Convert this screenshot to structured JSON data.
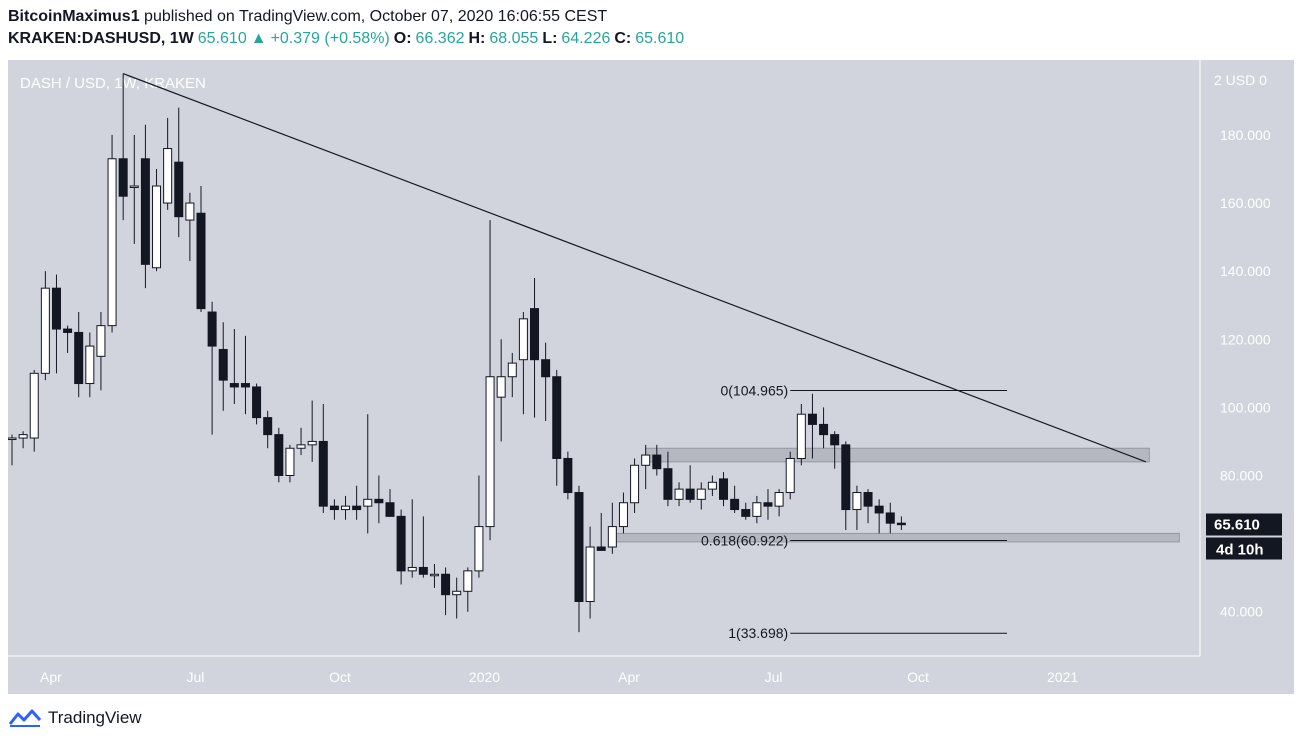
{
  "header": {
    "author": "BitcoinMaximus1",
    "published": "published on TradingView.com, October 07, 2020 16:06:55 CEST",
    "symbol": "KRAKEN:DASHUSD, 1W",
    "last": "65.610",
    "change": "+0.379 (+0.58%)",
    "o_label": "O:",
    "o": "66.362",
    "h_label": "H:",
    "h": "68.055",
    "l_label": "L:",
    "l": "64.226",
    "c_label": "C:",
    "c": "65.610"
  },
  "footer": {
    "brand": "TradingView"
  },
  "colors": {
    "background": "#d1d4dc",
    "bull": "#ffffff",
    "bear": "#131722",
    "accent": "#26a69a",
    "price_tag": "#131722"
  },
  "chart_data": {
    "type": "candlestick",
    "title": "DASH / USD, 1W, KRAKEN",
    "ylabel": "USD",
    "ylim": [
      27,
      202
    ],
    "yticks": [
      40,
      60,
      80,
      100,
      120,
      140,
      160,
      180
    ],
    "ytick_labels": [
      "40.000",
      "60.000",
      "80.000",
      "100.000",
      "120.000",
      "140.000",
      "160.000",
      "180.000"
    ],
    "top_label": "2 USD 0",
    "xlabels": [
      {
        "label": "Apr",
        "t": 3.5
      },
      {
        "label": "Jul",
        "t": 16.5
      },
      {
        "label": "Oct",
        "t": 29.5
      },
      {
        "label": "2020",
        "t": 42.5
      },
      {
        "label": "Apr",
        "t": 55.5
      },
      {
        "label": "Jul",
        "t": 68.5
      },
      {
        "label": "Oct",
        "t": 81.5
      },
      {
        "label": "2021",
        "t": 94.5
      }
    ],
    "t_range": [
      0,
      106.5
    ],
    "candles": [
      {
        "t": 0,
        "o": 91,
        "h": 92,
        "l": 83,
        "c": 91
      },
      {
        "t": 1,
        "o": 91,
        "h": 93,
        "l": 88,
        "c": 92
      },
      {
        "t": 2,
        "o": 91,
        "h": 111,
        "l": 87,
        "c": 110
      },
      {
        "t": 3,
        "o": 110,
        "h": 140,
        "l": 108,
        "c": 135
      },
      {
        "t": 4,
        "o": 135,
        "h": 139,
        "l": 110,
        "c": 123
      },
      {
        "t": 5,
        "o": 123,
        "h": 124,
        "l": 116,
        "c": 122
      },
      {
        "t": 6,
        "o": 122,
        "h": 128,
        "l": 103,
        "c": 107
      },
      {
        "t": 7,
        "o": 107,
        "h": 122,
        "l": 103,
        "c": 118
      },
      {
        "t": 8,
        "o": 115,
        "h": 128,
        "l": 105,
        "c": 124
      },
      {
        "t": 9,
        "o": 124,
        "h": 180,
        "l": 122,
        "c": 173
      },
      {
        "t": 10,
        "o": 173,
        "h": 198,
        "l": 155,
        "c": 162
      },
      {
        "t": 11,
        "o": 165,
        "h": 180,
        "l": 148,
        "c": 165
      },
      {
        "t": 12,
        "o": 173,
        "h": 183,
        "l": 135,
        "c": 142
      },
      {
        "t": 13,
        "o": 141,
        "h": 170,
        "l": 140,
        "c": 165
      },
      {
        "t": 14,
        "o": 160,
        "h": 185,
        "l": 158,
        "c": 176
      },
      {
        "t": 15,
        "o": 172,
        "h": 188,
        "l": 150,
        "c": 156
      },
      {
        "t": 16,
        "o": 155,
        "h": 163,
        "l": 143,
        "c": 160
      },
      {
        "t": 17,
        "o": 157,
        "h": 165,
        "l": 128,
        "c": 129
      },
      {
        "t": 18,
        "o": 128,
        "h": 131,
        "l": 92,
        "c": 118
      },
      {
        "t": 19,
        "o": 117,
        "h": 125,
        "l": 99,
        "c": 108
      },
      {
        "t": 20,
        "o": 107,
        "h": 123,
        "l": 101,
        "c": 106
      },
      {
        "t": 21,
        "o": 107,
        "h": 121,
        "l": 98,
        "c": 106
      },
      {
        "t": 22,
        "o": 106,
        "h": 107,
        "l": 95,
        "c": 97
      },
      {
        "t": 23,
        "o": 97,
        "h": 99,
        "l": 88,
        "c": 92
      },
      {
        "t": 24,
        "o": 92,
        "h": 94,
        "l": 78,
        "c": 80
      },
      {
        "t": 25,
        "o": 80,
        "h": 89,
        "l": 78,
        "c": 88
      },
      {
        "t": 26,
        "o": 88,
        "h": 94,
        "l": 86,
        "c": 89
      },
      {
        "t": 27,
        "o": 89,
        "h": 102,
        "l": 84,
        "c": 90
      },
      {
        "t": 28,
        "o": 90,
        "h": 101,
        "l": 69,
        "c": 71
      },
      {
        "t": 29,
        "o": 71,
        "h": 73,
        "l": 67,
        "c": 70
      },
      {
        "t": 30,
        "o": 70,
        "h": 74,
        "l": 67,
        "c": 71
      },
      {
        "t": 31,
        "o": 71,
        "h": 77,
        "l": 67,
        "c": 70
      },
      {
        "t": 32,
        "o": 71,
        "h": 98,
        "l": 63,
        "c": 73
      },
      {
        "t": 33,
        "o": 73,
        "h": 80,
        "l": 66,
        "c": 72
      },
      {
        "t": 34,
        "o": 72,
        "h": 76,
        "l": 68,
        "c": 68
      },
      {
        "t": 35,
        "o": 68,
        "h": 70,
        "l": 48,
        "c": 52
      },
      {
        "t": 36,
        "o": 52,
        "h": 73,
        "l": 50,
        "c": 53
      },
      {
        "t": 37,
        "o": 53,
        "h": 68,
        "l": 50,
        "c": 51
      },
      {
        "t": 38,
        "o": 51,
        "h": 54,
        "l": 47,
        "c": 51
      },
      {
        "t": 39,
        "o": 51,
        "h": 53,
        "l": 39,
        "c": 45
      },
      {
        "t": 40,
        "o": 45,
        "h": 50,
        "l": 38,
        "c": 46
      },
      {
        "t": 41,
        "o": 46,
        "h": 53,
        "l": 40,
        "c": 52
      },
      {
        "t": 42,
        "o": 52,
        "h": 80,
        "l": 50,
        "c": 65
      },
      {
        "t": 43,
        "o": 65,
        "h": 155,
        "l": 61,
        "c": 109
      },
      {
        "t": 44,
        "o": 103,
        "h": 120,
        "l": 90,
        "c": 109
      },
      {
        "t": 45,
        "o": 109,
        "h": 116,
        "l": 103,
        "c": 113
      },
      {
        "t": 46,
        "o": 114,
        "h": 128,
        "l": 98,
        "c": 126
      },
      {
        "t": 47,
        "o": 129,
        "h": 138,
        "l": 97,
        "c": 114
      },
      {
        "t": 48,
        "o": 114,
        "h": 119,
        "l": 96,
        "c": 109
      },
      {
        "t": 49,
        "o": 109,
        "h": 111,
        "l": 77,
        "c": 85
      },
      {
        "t": 50,
        "o": 85,
        "h": 87,
        "l": 73,
        "c": 75
      },
      {
        "t": 51,
        "o": 75,
        "h": 77,
        "l": 34,
        "c": 43
      },
      {
        "t": 52,
        "o": 43,
        "h": 65,
        "l": 38,
        "c": 59
      },
      {
        "t": 53,
        "o": 59,
        "h": 69,
        "l": 58,
        "c": 58
      },
      {
        "t": 54,
        "o": 59,
        "h": 72,
        "l": 57,
        "c": 65
      },
      {
        "t": 55,
        "o": 65,
        "h": 75,
        "l": 63,
        "c": 72
      },
      {
        "t": 56,
        "o": 72,
        "h": 85,
        "l": 69,
        "c": 83
      },
      {
        "t": 57,
        "o": 83,
        "h": 89,
        "l": 76,
        "c": 86
      },
      {
        "t": 58,
        "o": 86,
        "h": 89,
        "l": 80,
        "c": 82
      },
      {
        "t": 59,
        "o": 82,
        "h": 87,
        "l": 71,
        "c": 73
      },
      {
        "t": 60,
        "o": 73,
        "h": 78,
        "l": 71,
        "c": 76
      },
      {
        "t": 61,
        "o": 76,
        "h": 83,
        "l": 72,
        "c": 73
      },
      {
        "t": 62,
        "o": 73,
        "h": 78,
        "l": 70,
        "c": 76
      },
      {
        "t": 63,
        "o": 76,
        "h": 80,
        "l": 74,
        "c": 78
      },
      {
        "t": 64,
        "o": 79,
        "h": 81,
        "l": 71,
        "c": 73
      },
      {
        "t": 65,
        "o": 73,
        "h": 77,
        "l": 69,
        "c": 70
      },
      {
        "t": 66,
        "o": 70,
        "h": 72,
        "l": 67,
        "c": 68
      },
      {
        "t": 67,
        "o": 68,
        "h": 74,
        "l": 66,
        "c": 72
      },
      {
        "t": 68,
        "o": 72,
        "h": 76,
        "l": 67,
        "c": 71
      },
      {
        "t": 69,
        "o": 71,
        "h": 76,
        "l": 68,
        "c": 75
      },
      {
        "t": 70,
        "o": 75,
        "h": 87,
        "l": 73,
        "c": 85
      },
      {
        "t": 71,
        "o": 85,
        "h": 101,
        "l": 83,
        "c": 98
      },
      {
        "t": 72,
        "o": 98,
        "h": 104,
        "l": 85,
        "c": 95
      },
      {
        "t": 73,
        "o": 95,
        "h": 100,
        "l": 88,
        "c": 92
      },
      {
        "t": 74,
        "o": 92,
        "h": 93,
        "l": 82,
        "c": 89
      },
      {
        "t": 75,
        "o": 89,
        "h": 90,
        "l": 64,
        "c": 70
      },
      {
        "t": 76,
        "o": 70,
        "h": 77,
        "l": 64,
        "c": 75
      },
      {
        "t": 77,
        "o": 75,
        "h": 76,
        "l": 66,
        "c": 71
      },
      {
        "t": 78,
        "o": 71,
        "h": 73,
        "l": 63,
        "c": 69
      },
      {
        "t": 79,
        "o": 69,
        "h": 72,
        "l": 63,
        "c": 66
      },
      {
        "t": 80,
        "o": 66,
        "h": 68,
        "l": 64,
        "c": 65.61
      }
    ],
    "trendline": {
      "from": {
        "t": 10,
        "v": 198
      },
      "to": {
        "t": 102,
        "v": 84
      }
    },
    "zones": [
      {
        "name": "resistance",
        "t0": 57,
        "t1": 102.3,
        "v0": 84,
        "v1": 88
      },
      {
        "name": "support",
        "t0": 54,
        "t1": 105,
        "v0": 60.5,
        "v1": 63
      }
    ],
    "fib": {
      "t0": 70,
      "t1": 89.5,
      "levels": [
        {
          "label": "0(104.965)",
          "v": 104.965
        },
        {
          "label": "0.618(60.922)",
          "v": 60.922
        },
        {
          "label": "1(33.698)",
          "v": 33.698
        }
      ]
    },
    "last_price": {
      "label": "65.610",
      "v": 65.61,
      "countdown": "4d 10h"
    }
  }
}
